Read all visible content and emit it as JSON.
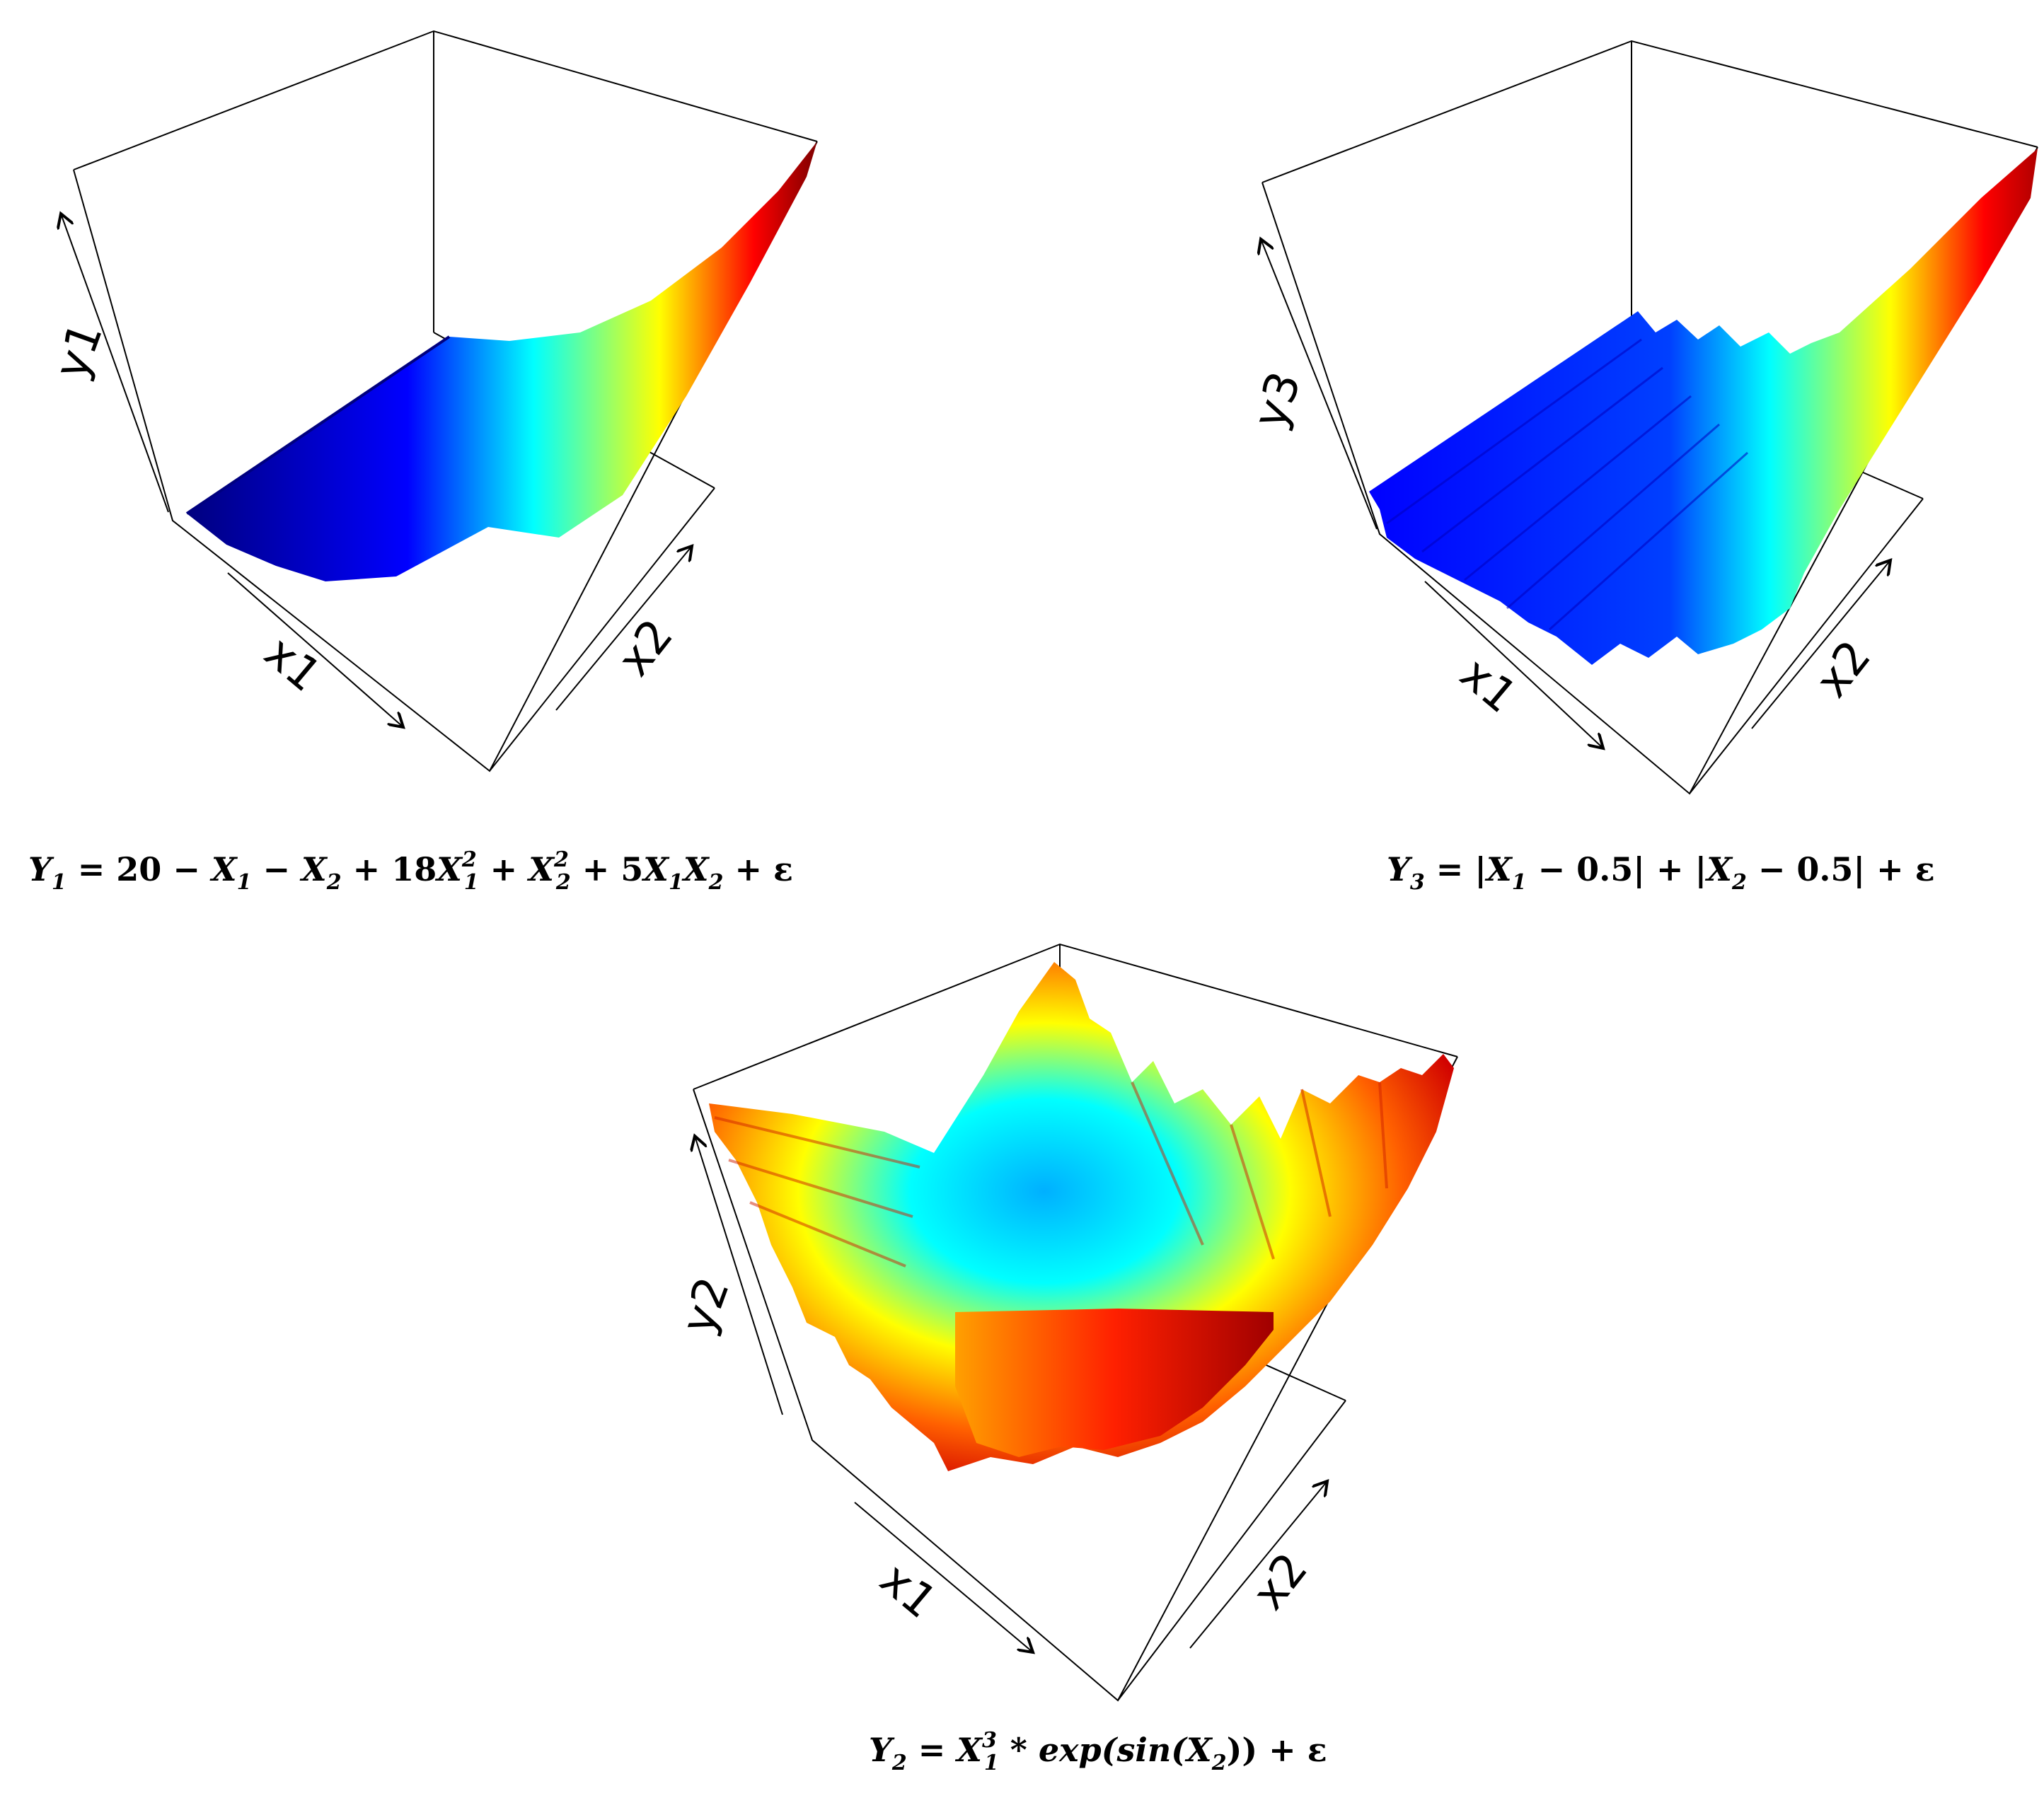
{
  "chart_data": [
    {
      "type": "surface3d",
      "id": "y1",
      "formula": "Y₁ = 20 − X₁ − X₂ + 18X₁² + X₂² + 5X₁X₂ + ε",
      "formula_parts": [
        "Y",
        "1",
        " = 20 − ",
        "X",
        "1",
        " − ",
        "X",
        "2",
        " + 18",
        "X",
        "1",
        "2",
        " + ",
        "X",
        "2",
        "2",
        " + 5",
        "X",
        "1",
        "X",
        "2",
        " + ε"
      ],
      "xlabel": "x1",
      "ylabel": "x2",
      "zlabel": "y1",
      "colormap": "jet",
      "colors": [
        "#00007f",
        "#0000ff",
        "#00ffff",
        "#ffff00",
        "#ff0000",
        "#7f0000"
      ]
    },
    {
      "type": "surface3d",
      "id": "y3",
      "formula": "Y₃ = |X₁ − 0.5| + |X₂ − 0.5| + ε",
      "xlabel": "x1",
      "ylabel": "x2",
      "zlabel": "y3",
      "colormap": "jet"
    },
    {
      "type": "surface3d",
      "id": "y2",
      "formula": "Y₂ = X₁³ * exp(sin(X₂)) + ε",
      "xlabel": "x1",
      "ylabel": "x2",
      "zlabel": "y2",
      "colormap": "jet"
    }
  ]
}
